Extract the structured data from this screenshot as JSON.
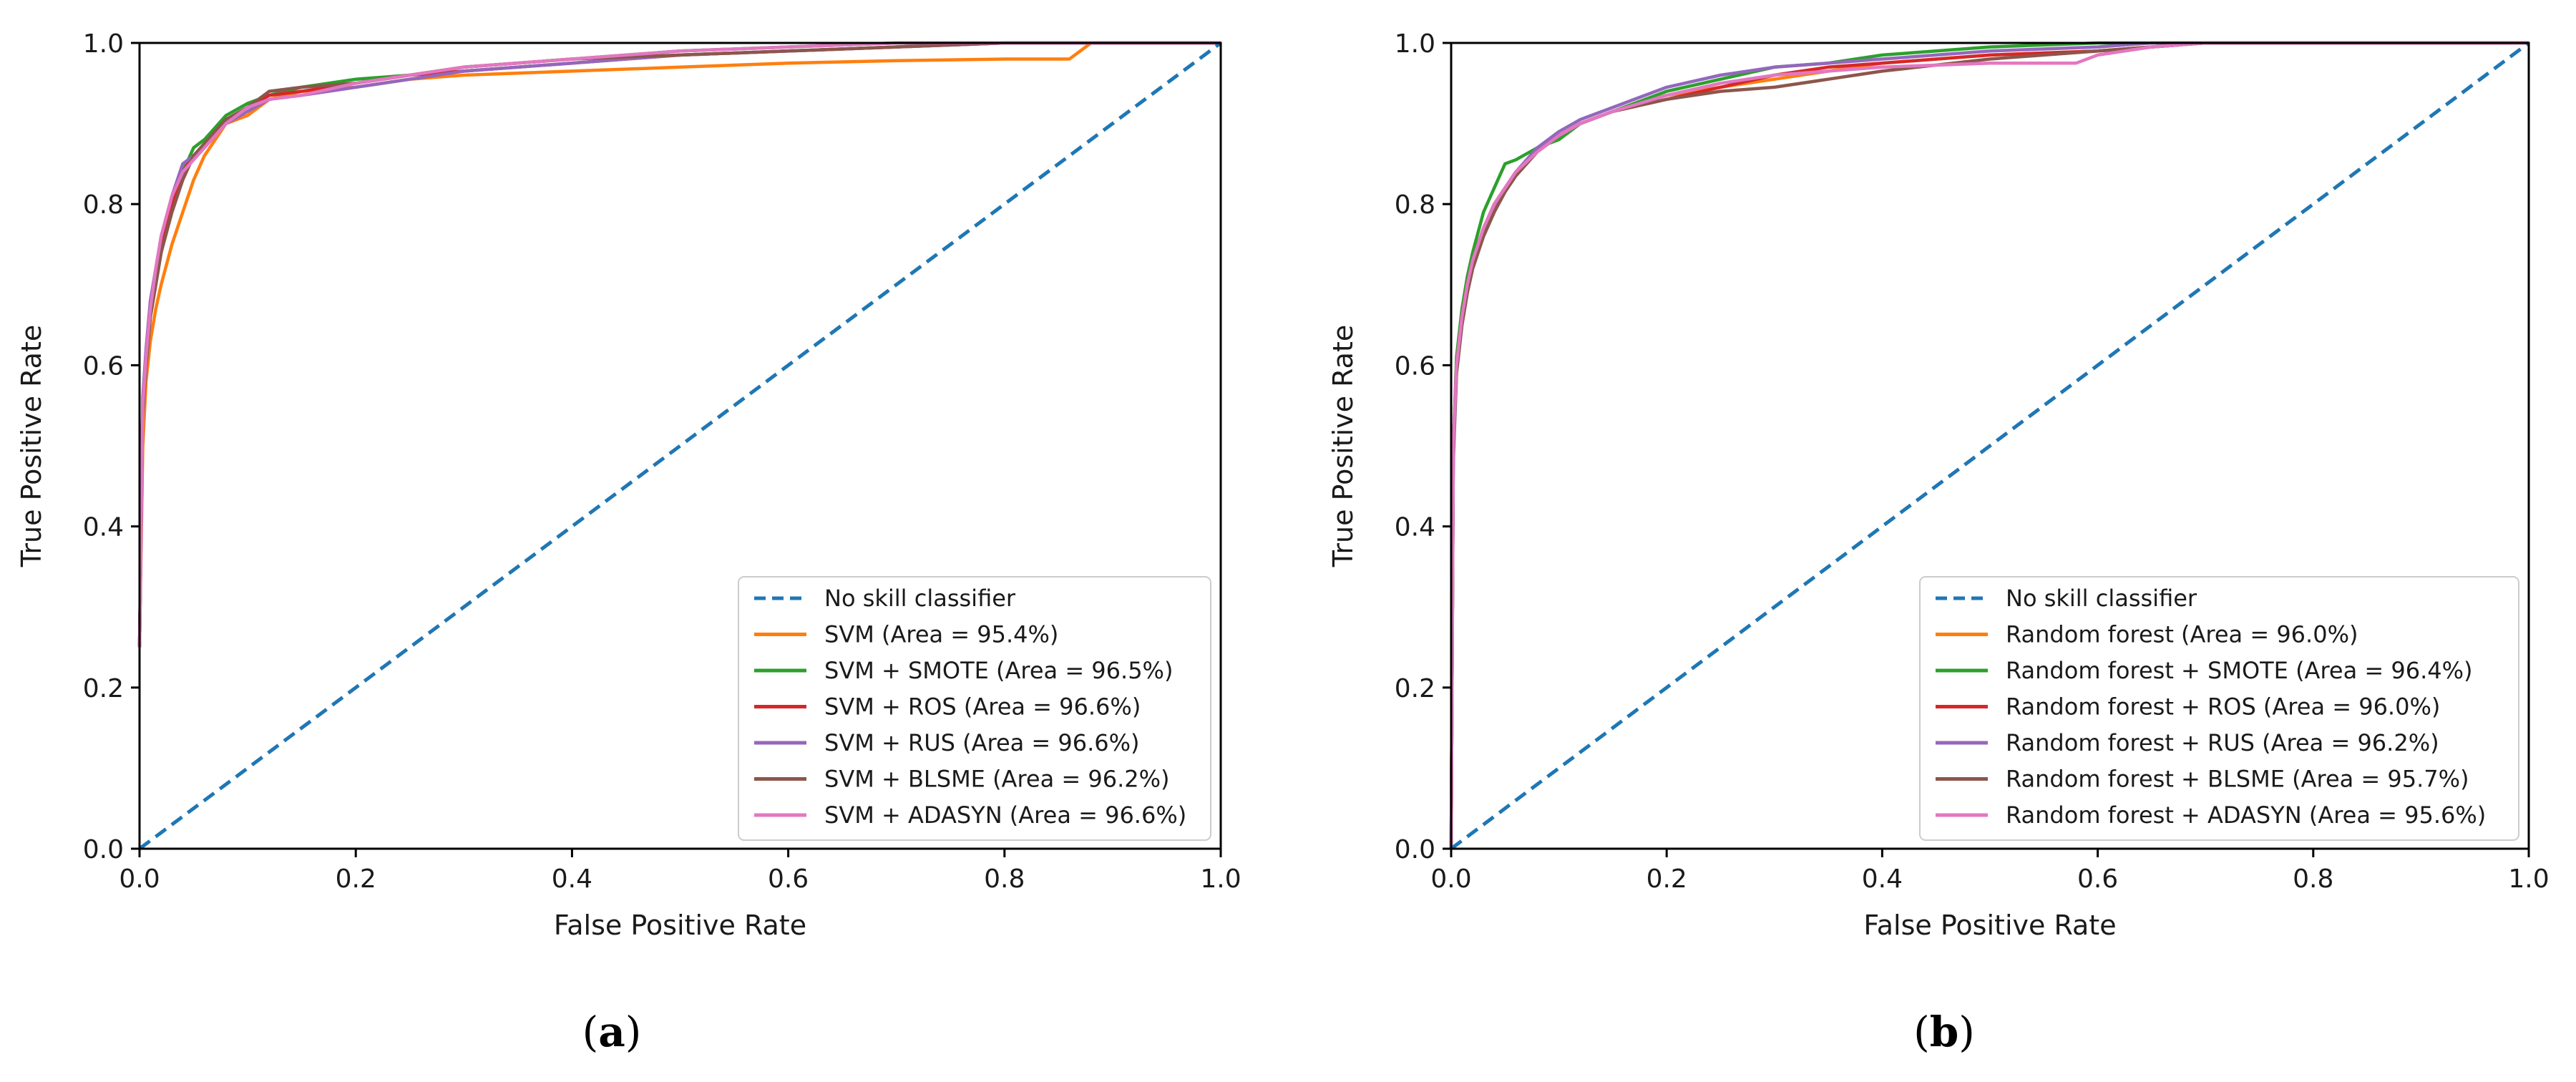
{
  "chart_data": [
    {
      "type": "line",
      "panel_label": "a",
      "xlabel": "False Positive Rate",
      "ylabel": "True Positive Rate",
      "xlim": [
        0.0,
        1.0
      ],
      "ylim": [
        0.0,
        1.0
      ],
      "xticks": [
        "0.0",
        "0.2",
        "0.4",
        "0.6",
        "0.8",
        "1.0"
      ],
      "yticks": [
        "0.0",
        "0.2",
        "0.4",
        "0.6",
        "0.8",
        "1.0"
      ],
      "legend_position": "lower-right",
      "baseline": {
        "name": "No skill classifier",
        "color": "#1f77b4",
        "x": [
          0.0,
          1.0
        ],
        "y": [
          0.0,
          1.0
        ]
      },
      "series": [
        {
          "name": "SVM (Area = 95.4%)",
          "color": "#ff7f0e",
          "x": [
            0,
            0.003,
            0.006,
            0.01,
            0.015,
            0.02,
            0.03,
            0.04,
            0.05,
            0.06,
            0.07,
            0.08,
            0.1,
            0.12,
            0.15,
            0.2,
            0.25,
            0.3,
            0.4,
            0.5,
            0.6,
            0.7,
            0.8,
            0.86,
            0.87,
            0.88,
            1.0
          ],
          "y": [
            0.25,
            0.5,
            0.58,
            0.63,
            0.67,
            0.7,
            0.75,
            0.79,
            0.83,
            0.86,
            0.88,
            0.9,
            0.91,
            0.93,
            0.94,
            0.945,
            0.955,
            0.96,
            0.965,
            0.97,
            0.975,
            0.978,
            0.98,
            0.98,
            0.99,
            1.0,
            1.0
          ]
        },
        {
          "name": "SVM + SMOTE (Area = 96.5%)",
          "color": "#2ca02c",
          "x": [
            0,
            0.003,
            0.006,
            0.01,
            0.015,
            0.02,
            0.03,
            0.04,
            0.05,
            0.06,
            0.07,
            0.08,
            0.1,
            0.12,
            0.15,
            0.2,
            0.25,
            0.3,
            0.4,
            0.5,
            0.6,
            0.7,
            0.8,
            0.9,
            1.0
          ],
          "y": [
            0.25,
            0.55,
            0.6,
            0.66,
            0.7,
            0.74,
            0.8,
            0.84,
            0.87,
            0.88,
            0.895,
            0.91,
            0.925,
            0.935,
            0.945,
            0.955,
            0.96,
            0.97,
            0.98,
            0.99,
            0.995,
            1.0,
            1.0,
            1.0,
            1.0
          ]
        },
        {
          "name": "SVM + ROS (Area = 96.6%)",
          "color": "#d62728",
          "x": [
            0,
            0.003,
            0.006,
            0.01,
            0.015,
            0.02,
            0.03,
            0.04,
            0.05,
            0.06,
            0.07,
            0.08,
            0.1,
            0.12,
            0.15,
            0.2,
            0.25,
            0.3,
            0.4,
            0.5,
            0.6,
            0.7,
            0.8,
            0.9,
            1.0
          ],
          "y": [
            0.25,
            0.55,
            0.61,
            0.67,
            0.71,
            0.75,
            0.8,
            0.84,
            0.86,
            0.875,
            0.89,
            0.905,
            0.92,
            0.935,
            0.94,
            0.95,
            0.96,
            0.965,
            0.975,
            0.985,
            0.99,
            0.995,
            1.0,
            1.0,
            1.0
          ]
        },
        {
          "name": "SVM + RUS (Area = 96.6%)",
          "color": "#9467bd",
          "x": [
            0,
            0.003,
            0.006,
            0.01,
            0.015,
            0.02,
            0.03,
            0.04,
            0.05,
            0.06,
            0.07,
            0.08,
            0.1,
            0.12,
            0.15,
            0.2,
            0.25,
            0.3,
            0.4,
            0.5,
            0.6,
            0.7,
            0.8,
            0.9,
            1.0
          ],
          "y": [
            0.25,
            0.56,
            0.62,
            0.68,
            0.72,
            0.76,
            0.81,
            0.85,
            0.86,
            0.875,
            0.89,
            0.9,
            0.915,
            0.93,
            0.935,
            0.945,
            0.955,
            0.965,
            0.975,
            0.985,
            0.99,
            0.995,
            1.0,
            1.0,
            1.0
          ]
        },
        {
          "name": "SVM + BLSME (Area = 96.2%)",
          "color": "#8c564b",
          "x": [
            0,
            0.003,
            0.006,
            0.01,
            0.015,
            0.02,
            0.03,
            0.04,
            0.05,
            0.06,
            0.07,
            0.08,
            0.1,
            0.12,
            0.15,
            0.2,
            0.25,
            0.3,
            0.4,
            0.5,
            0.6,
            0.7,
            0.8,
            0.9,
            1.0
          ],
          "y": [
            0.25,
            0.54,
            0.6,
            0.66,
            0.7,
            0.74,
            0.79,
            0.83,
            0.86,
            0.875,
            0.89,
            0.905,
            0.92,
            0.94,
            0.945,
            0.95,
            0.96,
            0.97,
            0.98,
            0.985,
            0.99,
            0.995,
            1.0,
            1.0,
            1.0
          ]
        },
        {
          "name": "SVM + ADASYN (Area = 96.6%)",
          "color": "#e377c2",
          "x": [
            0,
            0.003,
            0.006,
            0.01,
            0.015,
            0.02,
            0.03,
            0.04,
            0.05,
            0.06,
            0.07,
            0.08,
            0.1,
            0.12,
            0.15,
            0.2,
            0.25,
            0.3,
            0.4,
            0.5,
            0.6,
            0.7,
            0.8,
            0.9,
            1.0
          ],
          "y": [
            0.25,
            0.55,
            0.61,
            0.67,
            0.72,
            0.76,
            0.81,
            0.84,
            0.855,
            0.87,
            0.885,
            0.9,
            0.92,
            0.93,
            0.935,
            0.95,
            0.96,
            0.97,
            0.98,
            0.99,
            0.995,
            1.0,
            1.0,
            1.0,
            1.0
          ]
        }
      ]
    },
    {
      "type": "line",
      "panel_label": "b",
      "xlabel": "False Positive Rate",
      "ylabel": "True Positive Rate",
      "xlim": [
        0.0,
        1.0
      ],
      "ylim": [
        0.0,
        1.0
      ],
      "xticks": [
        "0.0",
        "0.2",
        "0.4",
        "0.6",
        "0.8",
        "1.0"
      ],
      "yticks": [
        "0.0",
        "0.2",
        "0.4",
        "0.6",
        "0.8",
        "1.0"
      ],
      "legend_position": "lower-right",
      "baseline": {
        "name": "No skill classifier",
        "color": "#1f77b4",
        "x": [
          0.0,
          1.0
        ],
        "y": [
          0.0,
          1.0
        ]
      },
      "series": [
        {
          "name": "Random forest (Area = 96.0%)",
          "color": "#ff7f0e",
          "x": [
            0,
            0.002,
            0.005,
            0.01,
            0.015,
            0.02,
            0.03,
            0.04,
            0.05,
            0.06,
            0.08,
            0.1,
            0.12,
            0.15,
            0.2,
            0.25,
            0.3,
            0.35,
            0.4,
            0.5,
            0.6,
            0.65,
            0.7,
            0.8,
            0.9,
            1.0
          ],
          "y": [
            0.0,
            0.5,
            0.6,
            0.66,
            0.7,
            0.73,
            0.77,
            0.8,
            0.82,
            0.84,
            0.865,
            0.885,
            0.9,
            0.915,
            0.935,
            0.945,
            0.955,
            0.965,
            0.975,
            0.985,
            0.99,
            0.995,
            1.0,
            1.0,
            1.0,
            1.0
          ]
        },
        {
          "name": "Random forest + SMOTE (Area = 96.4%)",
          "color": "#2ca02c",
          "x": [
            0,
            0.002,
            0.005,
            0.01,
            0.015,
            0.02,
            0.03,
            0.04,
            0.05,
            0.06,
            0.08,
            0.1,
            0.12,
            0.15,
            0.2,
            0.25,
            0.3,
            0.35,
            0.4,
            0.5,
            0.6,
            0.65,
            0.7,
            0.8,
            0.9,
            1.0
          ],
          "y": [
            0.0,
            0.5,
            0.61,
            0.67,
            0.71,
            0.74,
            0.79,
            0.82,
            0.85,
            0.855,
            0.87,
            0.88,
            0.9,
            0.915,
            0.94,
            0.955,
            0.97,
            0.975,
            0.985,
            0.995,
            1.0,
            1.0,
            1.0,
            1.0,
            1.0,
            1.0
          ]
        },
        {
          "name": "Random forest + ROS (Area = 96.0%)",
          "color": "#d62728",
          "x": [
            0,
            0.002,
            0.005,
            0.01,
            0.015,
            0.02,
            0.03,
            0.04,
            0.05,
            0.06,
            0.08,
            0.1,
            0.12,
            0.15,
            0.2,
            0.25,
            0.3,
            0.35,
            0.4,
            0.5,
            0.6,
            0.65,
            0.7,
            0.8,
            0.9,
            1.0
          ],
          "y": [
            0.0,
            0.5,
            0.6,
            0.66,
            0.7,
            0.73,
            0.77,
            0.8,
            0.82,
            0.84,
            0.865,
            0.885,
            0.9,
            0.915,
            0.93,
            0.945,
            0.96,
            0.97,
            0.975,
            0.985,
            0.99,
            0.995,
            1.0,
            1.0,
            1.0,
            1.0
          ]
        },
        {
          "name": "Random forest + RUS (Area = 96.2%)",
          "color": "#9467bd",
          "x": [
            0,
            0.002,
            0.005,
            0.01,
            0.015,
            0.02,
            0.03,
            0.04,
            0.05,
            0.06,
            0.08,
            0.1,
            0.12,
            0.15,
            0.2,
            0.25,
            0.3,
            0.35,
            0.4,
            0.5,
            0.6,
            0.65,
            0.7,
            0.8,
            0.9,
            1.0
          ],
          "y": [
            0.0,
            0.48,
            0.59,
            0.65,
            0.69,
            0.72,
            0.76,
            0.79,
            0.82,
            0.84,
            0.87,
            0.89,
            0.905,
            0.92,
            0.945,
            0.96,
            0.97,
            0.975,
            0.98,
            0.99,
            0.995,
            1.0,
            1.0,
            1.0,
            1.0,
            1.0
          ]
        },
        {
          "name": "Random forest + BLSME (Area = 95.7%)",
          "color": "#8c564b",
          "x": [
            0,
            0.002,
            0.005,
            0.01,
            0.015,
            0.02,
            0.03,
            0.04,
            0.05,
            0.06,
            0.08,
            0.1,
            0.12,
            0.15,
            0.2,
            0.25,
            0.3,
            0.35,
            0.4,
            0.5,
            0.6,
            0.65,
            0.7,
            0.8,
            0.9,
            1.0
          ],
          "y": [
            0.0,
            0.49,
            0.59,
            0.65,
            0.69,
            0.72,
            0.76,
            0.79,
            0.815,
            0.835,
            0.865,
            0.885,
            0.9,
            0.915,
            0.93,
            0.94,
            0.945,
            0.955,
            0.965,
            0.98,
            0.99,
            0.995,
            1.0,
            1.0,
            1.0,
            1.0
          ]
        },
        {
          "name": "Random forest + ADASYN (Area = 95.6%)",
          "color": "#e377c2",
          "x": [
            0,
            0.002,
            0.005,
            0.01,
            0.015,
            0.02,
            0.03,
            0.04,
            0.05,
            0.06,
            0.08,
            0.1,
            0.12,
            0.15,
            0.2,
            0.25,
            0.3,
            0.35,
            0.4,
            0.5,
            0.58,
            0.6,
            0.65,
            0.7,
            0.8,
            0.9,
            1.0
          ],
          "y": [
            0.0,
            0.5,
            0.6,
            0.66,
            0.7,
            0.73,
            0.77,
            0.8,
            0.82,
            0.84,
            0.865,
            0.885,
            0.9,
            0.915,
            0.935,
            0.95,
            0.96,
            0.965,
            0.97,
            0.975,
            0.975,
            0.985,
            0.995,
            1.0,
            1.0,
            1.0,
            1.0
          ]
        }
      ]
    }
  ]
}
